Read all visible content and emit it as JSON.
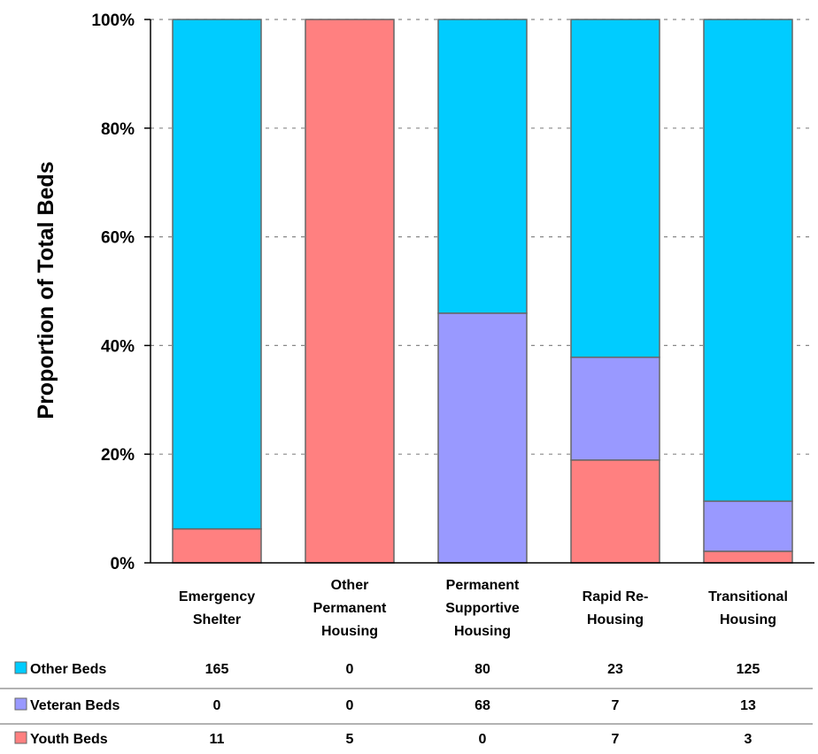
{
  "chart_data": {
    "type": "bar",
    "stacked": true,
    "normalized": true,
    "ylabel": "Proportion of Total Beds",
    "xlabel": "",
    "ylim": [
      0,
      100
    ],
    "yticks": [
      "0%",
      "20%",
      "40%",
      "60%",
      "80%",
      "100%"
    ],
    "grid": "horizontal dashed",
    "categories": [
      [
        "Emergency",
        "Shelter"
      ],
      [
        "Other",
        "Permanent",
        "Housing"
      ],
      [
        "Permanent",
        "Supportive",
        "Housing"
      ],
      [
        "Rapid Re-",
        "Housing"
      ],
      [
        "Transitional",
        "Housing"
      ]
    ],
    "series": [
      {
        "name": "Youth Beds",
        "color": "#FF8080",
        "values": [
          11,
          5,
          0,
          7,
          3
        ]
      },
      {
        "name": "Veteran Beds",
        "color": "#9999FF",
        "values": [
          0,
          0,
          68,
          7,
          13
        ]
      },
      {
        "name": "Other Beds",
        "color": "#00CCFF",
        "values": [
          165,
          0,
          80,
          23,
          125
        ]
      }
    ],
    "table_order": [
      "Other Beds",
      "Veteran Beds",
      "Youth Beds"
    ]
  }
}
